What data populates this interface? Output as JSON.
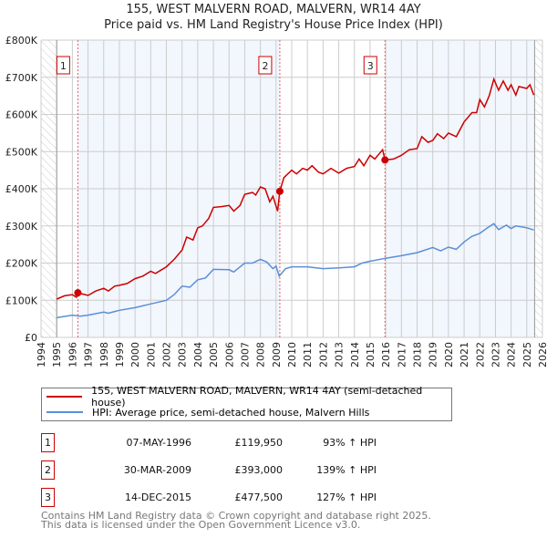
{
  "title_line1": "155, WEST MALVERN ROAD, MALVERN, WR14 4AY",
  "title_line2": "Price paid vs. HM Land Registry's House Price Index (HPI)",
  "chart_data": {
    "type": "line",
    "xlim": [
      1994,
      2026
    ],
    "ylim": [
      0,
      800000
    ],
    "x_ticks": [
      "1994",
      "1995",
      "1996",
      "1997",
      "1998",
      "1999",
      "2000",
      "2001",
      "2002",
      "2003",
      "2004",
      "2005",
      "2006",
      "2007",
      "2008",
      "2009",
      "2010",
      "2011",
      "2012",
      "2013",
      "2014",
      "2015",
      "2016",
      "2017",
      "2018",
      "2019",
      "2020",
      "2021",
      "2022",
      "2023",
      "2024",
      "2025",
      "2026"
    ],
    "y_ticks": [
      {
        "v": 0,
        "label": "£0"
      },
      {
        "v": 100000,
        "label": "£100K"
      },
      {
        "v": 200000,
        "label": "£200K"
      },
      {
        "v": 300000,
        "label": "£300K"
      },
      {
        "v": 400000,
        "label": "£400K"
      },
      {
        "v": 500000,
        "label": "£500K"
      },
      {
        "v": 600000,
        "label": "£600K"
      },
      {
        "v": 700000,
        "label": "£700K"
      },
      {
        "v": 800000,
        "label": "£800K"
      }
    ],
    "grid": true,
    "data_start": 1995.0,
    "data_end": 2025.5,
    "series": [
      {
        "name": "155, WEST MALVERN ROAD, MALVERN, WR14 4AY (semi-detached house)",
        "color": "#cc0000",
        "points": [
          [
            1995.0,
            103
          ],
          [
            1995.5,
            112
          ],
          [
            1996.0,
            115
          ],
          [
            1996.25,
            108
          ],
          [
            1996.35,
            120
          ],
          [
            1997.0,
            113
          ],
          [
            1997.5,
            125
          ],
          [
            1998.0,
            132
          ],
          [
            1998.3,
            125
          ],
          [
            1998.7,
            138
          ],
          [
            1999.0,
            140
          ],
          [
            1999.5,
            145
          ],
          [
            2000.0,
            158
          ],
          [
            2000.5,
            165
          ],
          [
            2001.0,
            178
          ],
          [
            2001.3,
            172
          ],
          [
            2001.7,
            182
          ],
          [
            2002.0,
            190
          ],
          [
            2002.5,
            210
          ],
          [
            2003.0,
            235
          ],
          [
            2003.3,
            270
          ],
          [
            2003.7,
            262
          ],
          [
            2004.0,
            295
          ],
          [
            2004.3,
            300
          ],
          [
            2004.7,
            320
          ],
          [
            2005.0,
            350
          ],
          [
            2005.5,
            352
          ],
          [
            2006.0,
            355
          ],
          [
            2006.3,
            340
          ],
          [
            2006.7,
            355
          ],
          [
            2007.0,
            385
          ],
          [
            2007.5,
            390
          ],
          [
            2007.7,
            383
          ],
          [
            2008.0,
            405
          ],
          [
            2008.3,
            400
          ],
          [
            2008.6,
            365
          ],
          [
            2008.8,
            380
          ],
          [
            2009.1,
            340
          ],
          [
            2009.24,
            393
          ],
          [
            2009.5,
            430
          ],
          [
            2010.0,
            450
          ],
          [
            2010.3,
            440
          ],
          [
            2010.7,
            455
          ],
          [
            2011.0,
            450
          ],
          [
            2011.3,
            462
          ],
          [
            2011.7,
            445
          ],
          [
            2012.0,
            440
          ],
          [
            2012.5,
            455
          ],
          [
            2013.0,
            442
          ],
          [
            2013.5,
            455
          ],
          [
            2014.0,
            460
          ],
          [
            2014.3,
            480
          ],
          [
            2014.6,
            462
          ],
          [
            2015.0,
            490
          ],
          [
            2015.3,
            480
          ],
          [
            2015.8,
            505
          ],
          [
            2015.95,
            477.5
          ],
          [
            2016.5,
            480
          ],
          [
            2017.0,
            490
          ],
          [
            2017.5,
            505
          ],
          [
            2018.0,
            508
          ],
          [
            2018.3,
            540
          ],
          [
            2018.7,
            525
          ],
          [
            2019.0,
            530
          ],
          [
            2019.3,
            548
          ],
          [
            2019.7,
            535
          ],
          [
            2020.0,
            550
          ],
          [
            2020.5,
            540
          ],
          [
            2021.0,
            580
          ],
          [
            2021.5,
            605
          ],
          [
            2021.8,
            605
          ],
          [
            2022.0,
            640
          ],
          [
            2022.3,
            620
          ],
          [
            2022.6,
            650
          ],
          [
            2022.9,
            695
          ],
          [
            2023.2,
            665
          ],
          [
            2023.5,
            690
          ],
          [
            2023.8,
            665
          ],
          [
            2024.0,
            680
          ],
          [
            2024.3,
            652
          ],
          [
            2024.5,
            675
          ],
          [
            2025.0,
            670
          ],
          [
            2025.2,
            680
          ],
          [
            2025.45,
            652
          ]
        ]
      },
      {
        "name": "HPI: Average price, semi-detached house, Malvern Hills",
        "color": "#5b8fd6",
        "points": [
          [
            1995.0,
            53
          ],
          [
            1996.0,
            60
          ],
          [
            1996.5,
            57
          ],
          [
            1997.0,
            60
          ],
          [
            1998.0,
            68
          ],
          [
            1998.3,
            65
          ],
          [
            1999.0,
            73
          ],
          [
            2000.0,
            80
          ],
          [
            2001.0,
            90
          ],
          [
            2002.0,
            100
          ],
          [
            2002.5,
            115
          ],
          [
            2003.0,
            138
          ],
          [
            2003.5,
            135
          ],
          [
            2004.0,
            155
          ],
          [
            2004.5,
            160
          ],
          [
            2005.0,
            183
          ],
          [
            2006.0,
            182
          ],
          [
            2006.3,
            176
          ],
          [
            2007.0,
            200
          ],
          [
            2007.5,
            200
          ],
          [
            2008.0,
            210
          ],
          [
            2008.4,
            203
          ],
          [
            2008.8,
            185
          ],
          [
            2009.0,
            192
          ],
          [
            2009.2,
            165
          ],
          [
            2009.6,
            185
          ],
          [
            2010.0,
            190
          ],
          [
            2011.0,
            190
          ],
          [
            2012.0,
            185
          ],
          [
            2013.0,
            187
          ],
          [
            2014.0,
            190
          ],
          [
            2014.5,
            200
          ],
          [
            2015.0,
            205
          ],
          [
            2016.0,
            213
          ],
          [
            2017.0,
            220
          ],
          [
            2018.0,
            228
          ],
          [
            2019.0,
            242
          ],
          [
            2019.5,
            233
          ],
          [
            2020.0,
            243
          ],
          [
            2020.5,
            237
          ],
          [
            2021.0,
            257
          ],
          [
            2021.5,
            272
          ],
          [
            2022.0,
            280
          ],
          [
            2022.5,
            295
          ],
          [
            2022.9,
            306
          ],
          [
            2023.2,
            290
          ],
          [
            2023.7,
            302
          ],
          [
            2024.0,
            293
          ],
          [
            2024.3,
            300
          ],
          [
            2025.0,
            295
          ],
          [
            2025.45,
            289
          ]
        ]
      }
    ],
    "sales": [
      {
        "id": "1",
        "x": 1996.35,
        "value": 119950
      },
      {
        "id": "2",
        "x": 2009.24,
        "value": 393000
      },
      {
        "id": "3",
        "x": 2015.95,
        "value": 477500
      }
    ]
  },
  "legend": [
    "155, WEST MALVERN ROAD, MALVERN, WR14 4AY (semi-detached house)",
    "HPI: Average price, semi-detached house, Malvern Hills"
  ],
  "transactions": [
    {
      "id": "1",
      "date": "07-MAY-1996",
      "price": "£119,950",
      "hpi": "93% ↑ HPI"
    },
    {
      "id": "2",
      "date": "30-MAR-2009",
      "price": "£393,000",
      "hpi": "139% ↑ HPI"
    },
    {
      "id": "3",
      "date": "14-DEC-2015",
      "price": "£477,500",
      "hpi": "127% ↑ HPI"
    }
  ],
  "footer_line1": "Contains HM Land Registry data © Crown copyright and database right 2025.",
  "footer_line2": "This data is licensed under the Open Government Licence v3.0."
}
